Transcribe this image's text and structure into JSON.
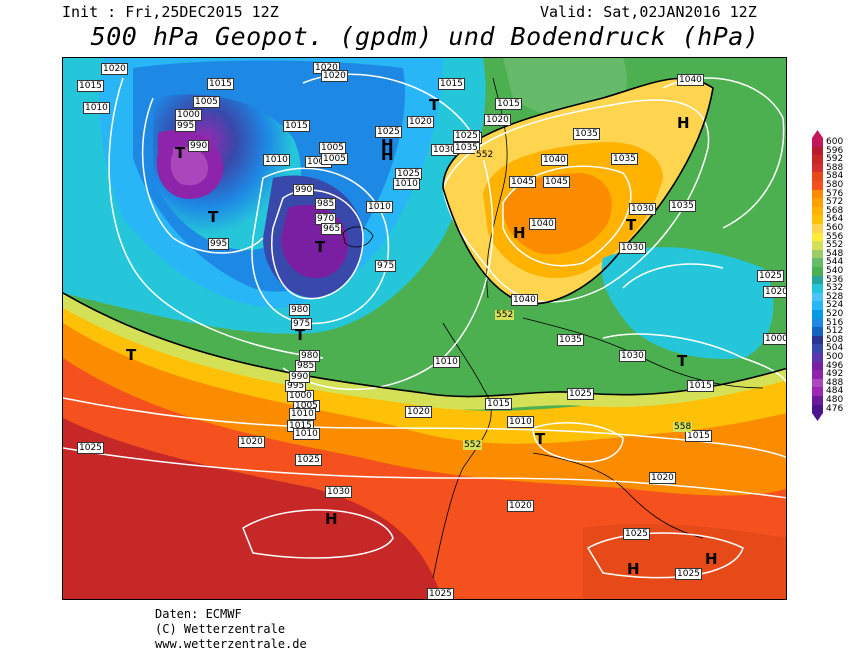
{
  "header": {
    "init": "Init : Fri,25DEC2015 12Z",
    "valid": "Valid: Sat,02JAN2016 12Z",
    "title": "500 hPa Geopot. (gpdm) und Bodendruck (hPa)"
  },
  "map": {
    "isobar_labels": [
      "1020",
      "1015",
      "1010",
      "1005",
      "1000",
      "995",
      "990",
      "1020",
      "1015",
      "1010",
      "1005",
      "1000",
      "995",
      "990",
      "985",
      "980",
      "975",
      "970",
      "965",
      "1015",
      "1010",
      "1020",
      "1025",
      "1030",
      "1035",
      "1040",
      "1045",
      "1040",
      "1035",
      "1030",
      "1025",
      "1020",
      "1015",
      "1010",
      "1005",
      "1000",
      "995",
      "990",
      "985",
      "980",
      "975",
      "1010",
      "1015",
      "1020",
      "1025",
      "1030",
      "1035",
      "1040",
      "1045",
      "1015",
      "1020",
      "1025",
      "1030",
      "1035",
      "1040",
      "1025",
      "1020",
      "1025",
      "1030",
      "1020",
      "1025",
      "1025",
      "1025",
      "1020",
      "1015",
      "1010",
      "1035",
      "1030",
      "1020",
      "1015",
      "1025",
      "1010",
      "1005",
      "1000",
      "1015",
      "1010",
      "1020"
    ],
    "pressure_centers": [
      "T",
      "H",
      "T",
      "T",
      "H",
      "H",
      "T",
      "T",
      "H",
      "T",
      "T",
      "T",
      "H",
      "H",
      "H",
      "T"
    ],
    "geopotential_labels": [
      "552",
      "552",
      "552",
      "558"
    ]
  },
  "colorbar": {
    "labels": [
      "600",
      "596",
      "592",
      "588",
      "584",
      "580",
      "576",
      "572",
      "568",
      "564",
      "560",
      "556",
      "552",
      "548",
      "544",
      "540",
      "536",
      "532",
      "528",
      "524",
      "520",
      "516",
      "512",
      "508",
      "504",
      "500",
      "496",
      "492",
      "488",
      "484",
      "480",
      "476"
    ],
    "colors": [
      "#c2185b",
      "#b71c2e",
      "#c62828",
      "#d32f2f",
      "#e64a19",
      "#f4511e",
      "#fb8c00",
      "#ffa000",
      "#ffb300",
      "#ffc107",
      "#ffd54f",
      "#ffeb3b",
      "#d4e157",
      "#9ccc65",
      "#66bb6a",
      "#4caf50",
      "#26a69a",
      "#26c6da",
      "#4fc3f7",
      "#29b6f6",
      "#039be5",
      "#1e88e5",
      "#1565c0",
      "#283593",
      "#3949ab",
      "#5e35b1",
      "#7b1fa2",
      "#8e24aa",
      "#ab47bc",
      "#9c27b0",
      "#6a1b9a",
      "#4a148c"
    ]
  },
  "credits": {
    "line1": "Daten: ECMWF",
    "line2": "(C) Wetterzentrale",
    "line3": "www.wetterzentrale.de"
  }
}
